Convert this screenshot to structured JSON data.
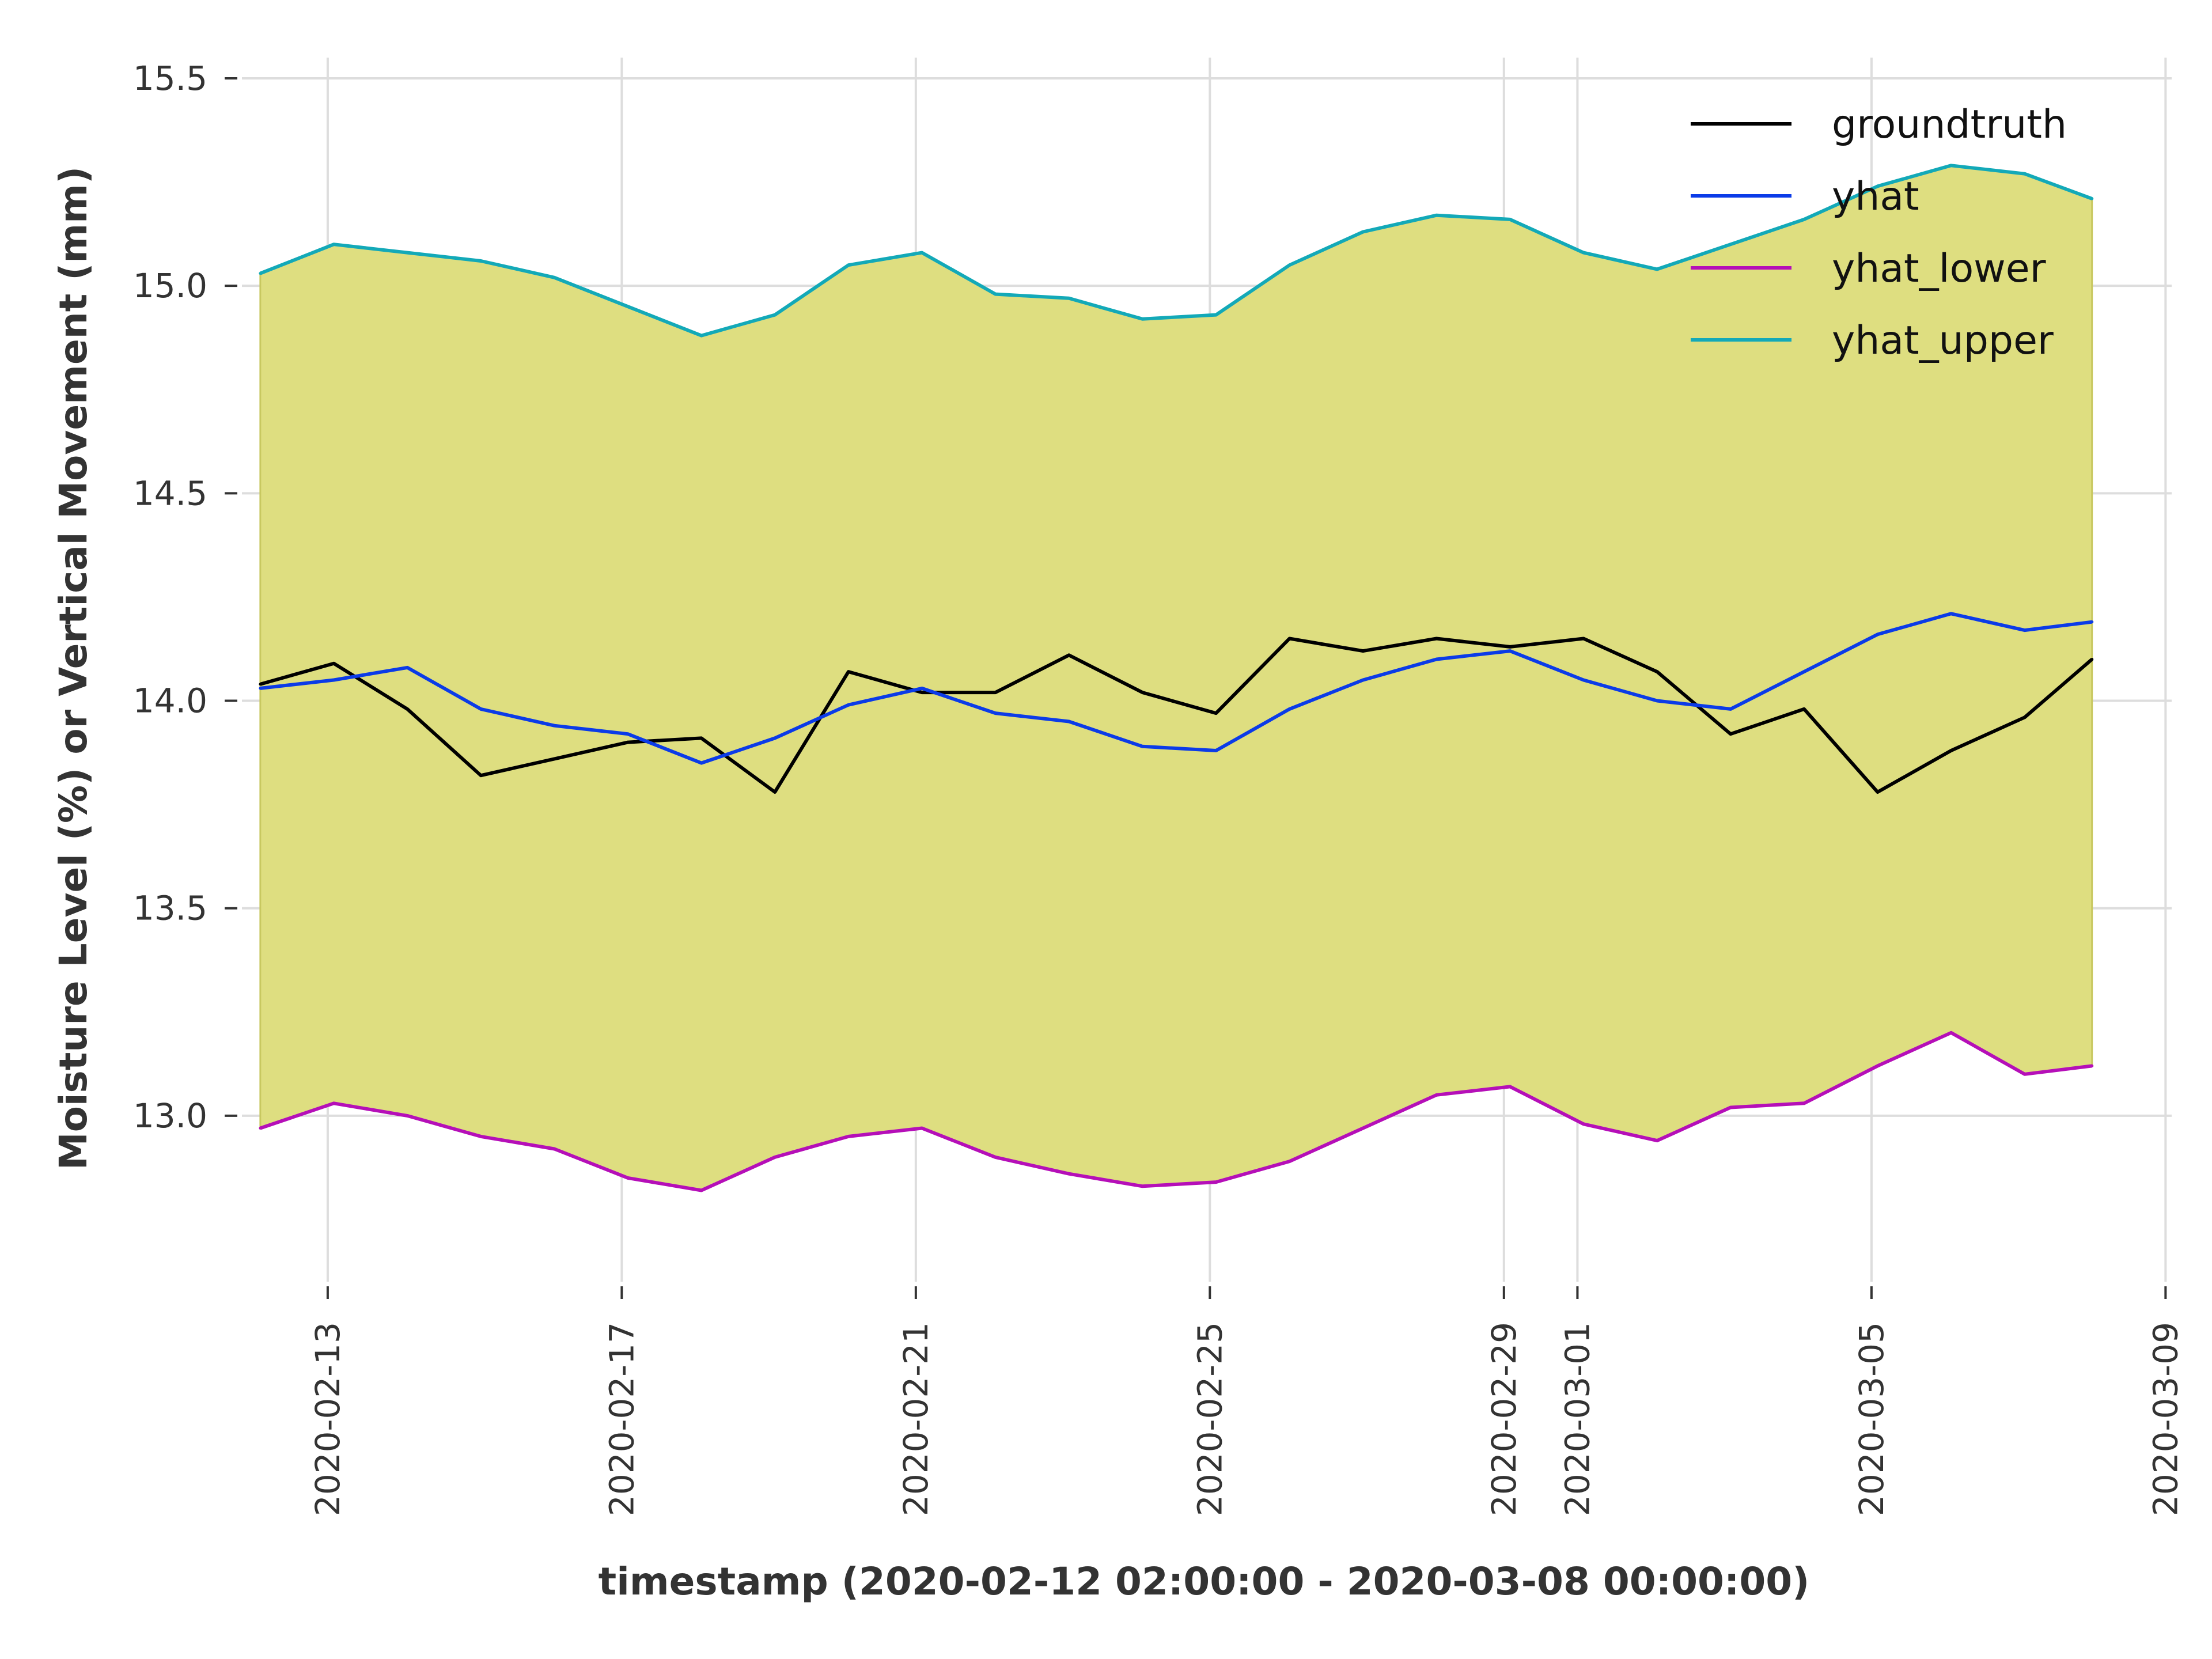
{
  "chart_data": {
    "type": "line",
    "xlabel": "timestamp (2020-02-12 02:00:00 - 2020-03-08 00:00:00)",
    "ylabel": "Moisture Level (%) or Vertical Movement (mm)",
    "ylim": [
      12.6,
      15.55
    ],
    "xlim": [
      "2020-02-11 20:00",
      "2020-03-09 02:00"
    ],
    "x_ticks": [
      "2020-02-13",
      "2020-02-17",
      "2020-02-21",
      "2020-02-25",
      "2020-02-29",
      "2020-03-01",
      "2020-03-05",
      "2020-03-09"
    ],
    "y_ticks": [
      "13.0",
      "13.5",
      "14.0",
      "14.5",
      "15.0",
      "15.5"
    ],
    "grid": true,
    "legend_position": "top-right",
    "interval_fill": {
      "between": [
        "yhat_lower",
        "yhat_upper"
      ],
      "color": "#dede80"
    },
    "x": [
      "2020-02-12 02:00",
      "2020-02-13 02:00",
      "2020-02-14 02:00",
      "2020-02-15 02:00",
      "2020-02-16 02:00",
      "2020-02-17 02:00",
      "2020-02-18 02:00",
      "2020-02-19 02:00",
      "2020-02-20 02:00",
      "2020-02-21 02:00",
      "2020-02-22 02:00",
      "2020-02-23 02:00",
      "2020-02-24 02:00",
      "2020-02-25 02:00",
      "2020-02-26 02:00",
      "2020-02-27 02:00",
      "2020-02-28 02:00",
      "2020-02-29 02:00",
      "2020-03-01 02:00",
      "2020-03-02 02:00",
      "2020-03-03 02:00",
      "2020-03-04 02:00",
      "2020-03-05 02:00",
      "2020-03-06 02:00",
      "2020-03-07 02:00",
      "2020-03-08 00:00"
    ],
    "series": [
      {
        "name": "groundtruth",
        "color": "#000000",
        "values": [
          14.04,
          14.09,
          13.98,
          13.82,
          13.86,
          13.9,
          13.91,
          13.78,
          14.07,
          14.02,
          14.02,
          14.11,
          14.02,
          13.97,
          14.15,
          14.12,
          14.15,
          14.13,
          14.15,
          14.07,
          13.92,
          13.98,
          13.78,
          13.88,
          13.96,
          14.1
        ]
      },
      {
        "name": "yhat",
        "color": "#0b3be8",
        "values": [
          14.03,
          14.05,
          14.08,
          13.98,
          13.94,
          13.92,
          13.85,
          13.91,
          13.99,
          14.03,
          13.97,
          13.95,
          13.89,
          13.88,
          13.98,
          14.05,
          14.1,
          14.12,
          14.05,
          14.0,
          13.98,
          14.07,
          14.16,
          14.21,
          14.17,
          14.19
        ]
      },
      {
        "name": "yhat_lower",
        "color": "#b50fb8",
        "values": [
          12.97,
          13.03,
          13.0,
          12.95,
          12.92,
          12.85,
          12.82,
          12.9,
          12.95,
          12.97,
          12.9,
          12.86,
          12.83,
          12.84,
          12.89,
          12.97,
          13.05,
          13.07,
          12.98,
          12.94,
          13.02,
          13.03,
          13.12,
          13.2,
          13.1,
          13.12
        ]
      },
      {
        "name": "yhat_upper",
        "color": "#13a9b8",
        "values": [
          15.03,
          15.1,
          15.08,
          15.06,
          15.02,
          14.95,
          14.88,
          14.93,
          15.05,
          15.08,
          14.98,
          14.97,
          14.92,
          14.93,
          15.05,
          15.13,
          15.17,
          15.16,
          15.08,
          15.04,
          15.1,
          15.16,
          15.24,
          15.29,
          15.27,
          15.21
        ]
      }
    ]
  }
}
